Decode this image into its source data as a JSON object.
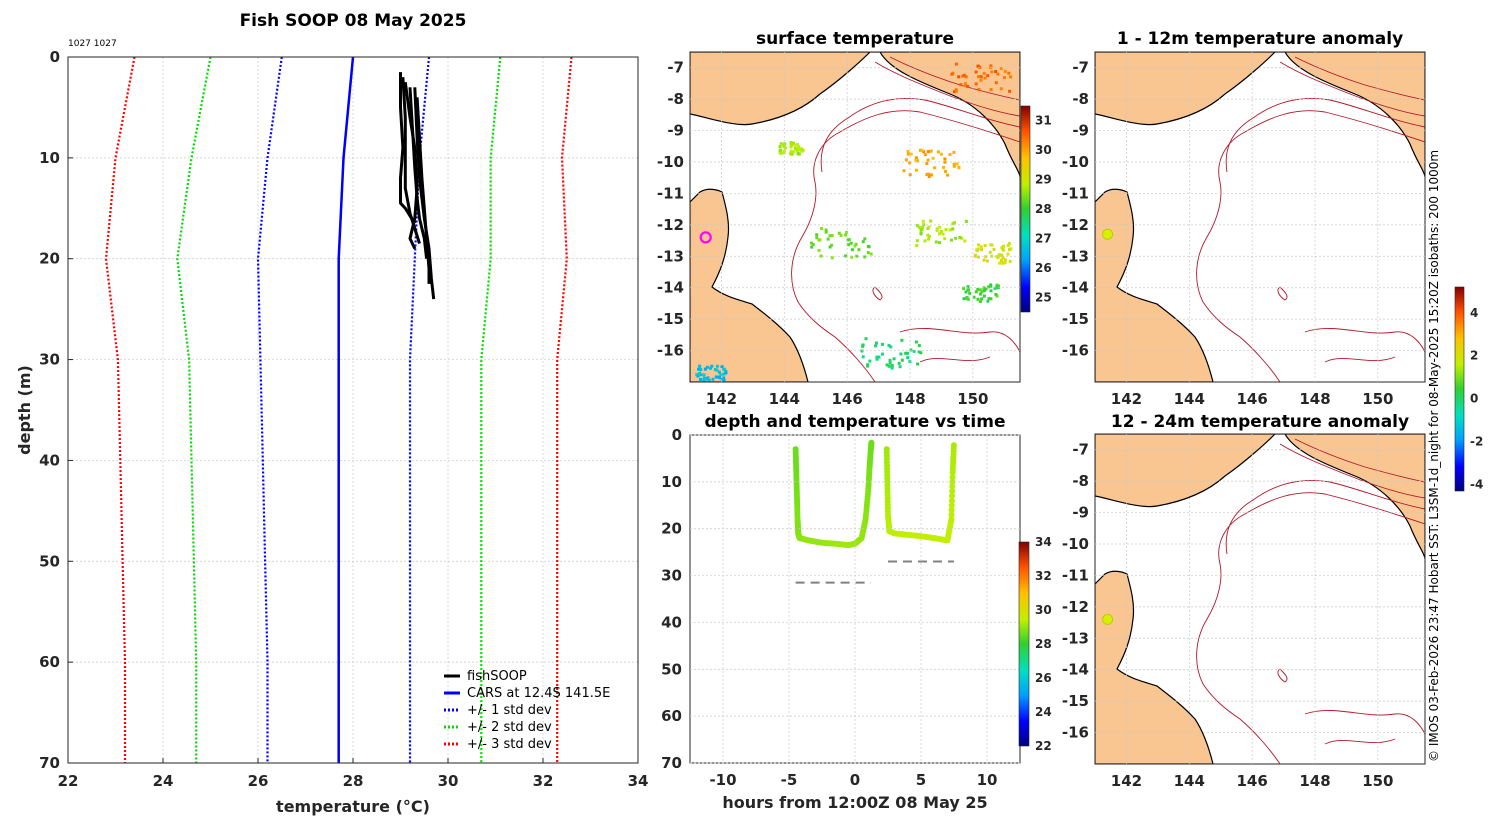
{
  "colors": {
    "black": "#000000",
    "cars": "#0000ff",
    "std1": "#0000ff",
    "std2": "#00dd00",
    "std3": "#ff0000",
    "land": "#f9c691",
    "isobath": "#b2182b"
  },
  "chart_data": [
    {
      "id": "profile",
      "type": "line",
      "title": "Fish SOOP 08 May 2025",
      "annotation": "1027 1027",
      "xlabel": "temperature (°C)",
      "ylabel": "depth (m)",
      "xlim": [
        22,
        34
      ],
      "ylim": [
        0,
        70
      ],
      "xticks": [
        "22",
        "24",
        "26",
        "28",
        "30",
        "32",
        "34"
      ],
      "yticks": [
        "0",
        "10",
        "20",
        "30",
        "40",
        "50",
        "60",
        "70"
      ],
      "legend": {
        "placement": "bottom-right",
        "entries": [
          "fishSOOP",
          "CARS at 12.4S 141.5E",
          "+/- 1 std dev",
          "+/- 2 std dev",
          "+/- 3 std dev"
        ]
      },
      "depth": [
        0,
        10,
        20,
        30,
        40,
        50,
        60,
        70
      ],
      "cars_mean": [
        28.0,
        27.8,
        27.7,
        27.7,
        27.7,
        27.7,
        27.7,
        27.7
      ],
      "std1_low": [
        26.5,
        26.2,
        26.0,
        26.05,
        26.1,
        26.15,
        26.2,
        26.2
      ],
      "std1_high": [
        29.6,
        29.4,
        29.3,
        29.2,
        29.2,
        29.2,
        29.2,
        29.2
      ],
      "std2_low": [
        25.0,
        24.6,
        24.3,
        24.55,
        24.6,
        24.65,
        24.7,
        24.7
      ],
      "std2_high": [
        31.1,
        30.9,
        30.9,
        30.7,
        30.7,
        30.7,
        30.7,
        30.7
      ],
      "std3_low": [
        23.4,
        23.0,
        22.8,
        23.05,
        23.1,
        23.15,
        23.2,
        23.2
      ],
      "std3_high": [
        32.6,
        32.4,
        32.5,
        32.3,
        32.3,
        32.3,
        32.3,
        32.3
      ],
      "fishsoop_casts": [
        {
          "depth": [
            1.5,
            5,
            9,
            12,
            14.5,
            15,
            16.5
          ],
          "temp": [
            29.0,
            29.0,
            29.05,
            29.0,
            29.0,
            29.1,
            29.3
          ]
        },
        {
          "depth": [
            2,
            6,
            10,
            13,
            15.5,
            17,
            18.5
          ],
          "temp": [
            29.05,
            29.1,
            29.1,
            29.1,
            29.2,
            29.3,
            29.4
          ]
        },
        {
          "depth": [
            3,
            7,
            11,
            14,
            16,
            18,
            20
          ],
          "temp": [
            29.2,
            29.25,
            29.3,
            29.35,
            29.4,
            29.5,
            29.55
          ]
        },
        {
          "depth": [
            3,
            8,
            12,
            16,
            19,
            22,
            24
          ],
          "temp": [
            29.3,
            29.35,
            29.4,
            29.5,
            29.6,
            29.65,
            29.7
          ]
        },
        {
          "depth": [
            4,
            8,
            12,
            15,
            18,
            21,
            22.5
          ],
          "temp": [
            29.35,
            29.4,
            29.45,
            29.5,
            29.55,
            29.6,
            29.6
          ]
        },
        {
          "depth": [
            2.5,
            6,
            9,
            13,
            16,
            18,
            19
          ],
          "temp": [
            29.1,
            29.2,
            29.3,
            29.35,
            29.3,
            29.2,
            29.3
          ]
        }
      ]
    },
    {
      "id": "surface",
      "type": "heatmap",
      "title": "surface temperature",
      "xlim": [
        141,
        151.5
      ],
      "ylim": [
        -17,
        -6.5
      ],
      "xticks": [
        "142",
        "144",
        "146",
        "148",
        "150"
      ],
      "yticks": [
        "-7",
        "-8",
        "-9",
        "-10",
        "-11",
        "-12",
        "-13",
        "-14",
        "-15",
        "-16"
      ],
      "colorbar": {
        "min": 24.5,
        "max": 31.5,
        "ticks": [
          "25",
          "26",
          "27",
          "28",
          "29",
          "30",
          "31"
        ]
      },
      "marker": {
        "lon": 141.5,
        "lat": -12.4
      }
    },
    {
      "id": "anom1",
      "type": "heatmap",
      "title": "1 - 12m temperature anomaly",
      "xlim": [
        141,
        151.5
      ],
      "ylim": [
        -17,
        -6.5
      ],
      "xticks": [
        "142",
        "144",
        "146",
        "148",
        "150"
      ],
      "yticks": [
        "-7",
        "-8",
        "-9",
        "-10",
        "-11",
        "-12",
        "-13",
        "-14",
        "-15",
        "-16"
      ],
      "marker": {
        "lon": 141.4,
        "lat": -12.3
      }
    },
    {
      "id": "anom2",
      "type": "heatmap",
      "title": "12 - 24m temperature anomaly",
      "xlim": [
        141,
        151.5
      ],
      "ylim": [
        -17,
        -6.5
      ],
      "xticks": [
        "142",
        "144",
        "146",
        "148",
        "150"
      ],
      "yticks": [
        "-7",
        "-8",
        "-9",
        "-10",
        "-11",
        "-12",
        "-13",
        "-14",
        "-15",
        "-16"
      ],
      "marker": {
        "lon": 141.4,
        "lat": -12.4
      },
      "colorbar": {
        "min": -4.3,
        "max": 5.2,
        "ticks": [
          "-4",
          "-2",
          "0",
          "2",
          "4"
        ]
      }
    },
    {
      "id": "time",
      "type": "scatter",
      "title": "depth and temperature vs time",
      "xlabel": "hours from 12:00Z 08 May 25",
      "xlim": [
        -12.5,
        12.5
      ],
      "ylim": [
        0,
        70
      ],
      "xticks": [
        "-10",
        "-5",
        "0",
        "5",
        "10"
      ],
      "yticks": [
        "0",
        "10",
        "20",
        "30",
        "40",
        "50",
        "60",
        "70"
      ],
      "colorbar": {
        "min": 22,
        "max": 34,
        "ticks": [
          "22",
          "24",
          "26",
          "28",
          "30",
          "32",
          "34"
        ]
      },
      "bottom_lines": [
        {
          "x": [
            -4.5,
            1.2
          ],
          "depth": 31.5
        },
        {
          "x": [
            2.5,
            7.5
          ],
          "depth": 27
        }
      ],
      "traces": [
        {
          "t": [
            -4.5,
            -4.45,
            -4.4,
            -4.35,
            -4.3,
            -4.2,
            -3.5,
            -2.5,
            -1.5,
            -0.5,
            0.0,
            0.5,
            0.8,
            1.0,
            1.1,
            1.2,
            1.25
          ],
          "depth": [
            3,
            8,
            13,
            18,
            21,
            22,
            22.5,
            23,
            23.2,
            23.5,
            23.2,
            22,
            18,
            12,
            7,
            3,
            1.5
          ],
          "temp": [
            28.6,
            28.6,
            28.7,
            28.8,
            28.8,
            28.9,
            29.0,
            29.0,
            29.1,
            29.1,
            29.1,
            29.0,
            28.9,
            28.8,
            28.7,
            28.6,
            28.6
          ]
        },
        {
          "t": [
            2.4,
            2.45,
            2.5,
            2.6,
            3.0,
            4.0,
            5.0,
            6.0,
            7.0,
            7.3,
            7.4,
            7.5
          ],
          "depth": [
            3,
            10,
            17,
            20.5,
            21,
            21.3,
            21.6,
            22,
            22.5,
            18,
            8,
            1.5
          ],
          "temp": [
            29.1,
            29.2,
            29.3,
            29.4,
            29.4,
            29.5,
            29.5,
            29.5,
            29.5,
            29.4,
            29.3,
            29.2
          ]
        }
      ]
    }
  ],
  "side_text": "© IMOS 03-Feb-2026 23:47 Hobart SST: L3SM-1d_night for 08-May-2025 15:20Z isobaths: 200  1000m"
}
